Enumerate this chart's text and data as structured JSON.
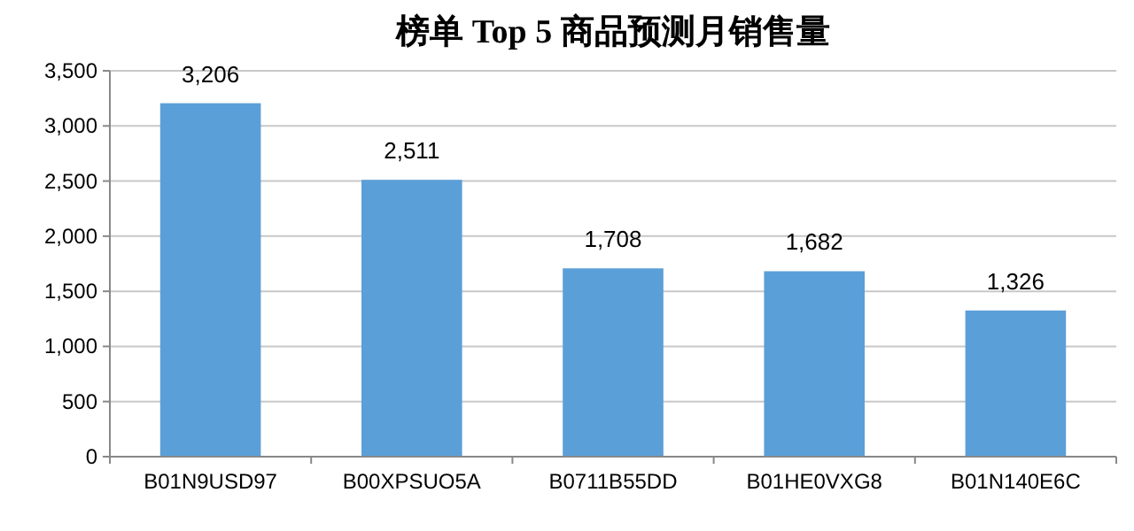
{
  "chart_data": {
    "type": "bar",
    "title": "榜单 Top 5 商品预测月销售量",
    "categories": [
      "B01N9USD97",
      "B00XPSUO5A",
      "B0711B55DD",
      "B01HE0VXG8",
      "B01N140E6C"
    ],
    "values": [
      3206,
      2511,
      1708,
      1682,
      1326
    ],
    "value_labels": [
      "3,206",
      "2,511",
      "1,708",
      "1,682",
      "1,326"
    ],
    "color": "#5b9fd8",
    "ylim": [
      0,
      3500
    ],
    "yticks": [
      {
        "value": 0,
        "label": "0"
      },
      {
        "value": 500,
        "label": "500"
      },
      {
        "value": 1000,
        "label": "1,000"
      },
      {
        "value": 1500,
        "label": "1,500"
      },
      {
        "value": 2000,
        "label": "2,000"
      },
      {
        "value": 2500,
        "label": "2,500"
      },
      {
        "value": 3000,
        "label": "3,000"
      },
      {
        "value": 3500,
        "label": "3,500"
      }
    ],
    "grid": "y"
  }
}
